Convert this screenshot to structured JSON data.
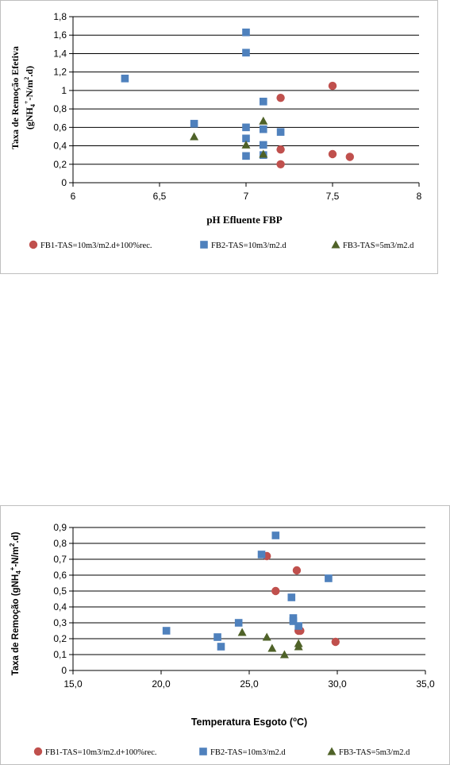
{
  "chart_data": [
    {
      "type": "scatter",
      "title": "",
      "xlabel": "pH Efluente FBP",
      "ylabel": "Taxa de Remoção Efetiva (gNH4+-N/m2.d)",
      "ylabel_line1": "Taxa de Remoção Efetiva",
      "ylabel_line2_pre": "(gNH",
      "ylabel_line2_sub": "4",
      "ylabel_line2_sup": "+",
      "ylabel_line2_mid": "-N/m",
      "ylabel_line2_sup2": "2",
      "ylabel_line2_post": ".d)",
      "xlim": [
        6,
        8
      ],
      "ylim": [
        0,
        1.8
      ],
      "x_ticks": [
        "6",
        "6,5",
        "7",
        "7,5",
        "8"
      ],
      "y_ticks": [
        "0",
        "0,2",
        "0,4",
        "0,6",
        "0,8",
        "1",
        "1,2",
        "1,4",
        "1,6",
        "1,8"
      ],
      "grid": true,
      "legend_position": "bottom",
      "series": [
        {
          "name": "FB1-TAS=10m3/m2.d+100%rec.",
          "marker": "circle",
          "color": "#c0504d",
          "points": [
            [
              7.2,
              0.92
            ],
            [
              7.5,
              1.05
            ],
            [
              7.2,
              0.36
            ],
            [
              7.2,
              0.2
            ],
            [
              7.5,
              0.31
            ],
            [
              7.6,
              0.28
            ]
          ]
        },
        {
          "name": "FB2-TAS=10m3/m2.d",
          "marker": "square",
          "color": "#4f81bd",
          "points": [
            [
              6.3,
              1.13
            ],
            [
              7.0,
              1.63
            ],
            [
              7.0,
              1.41
            ],
            [
              7.1,
              0.88
            ],
            [
              6.7,
              0.64
            ],
            [
              7.0,
              0.6
            ],
            [
              7.1,
              0.58
            ],
            [
              7.2,
              0.55
            ],
            [
              7.0,
              0.48
            ],
            [
              7.1,
              0.41
            ],
            [
              7.0,
              0.29
            ],
            [
              7.1,
              0.3
            ]
          ]
        },
        {
          "name": "FB3-TAS=5m3/m2.d",
          "marker": "triangle",
          "color": "#4f6228",
          "points": [
            [
              6.7,
              0.5
            ],
            [
              7.1,
              0.67
            ],
            [
              7.0,
              0.41
            ],
            [
              7.1,
              0.31
            ]
          ]
        }
      ]
    },
    {
      "type": "scatter",
      "title": "",
      "xlabel": "Temperatura Esgoto (oC)",
      "xlabel_pre": "Temperatura Esgoto (",
      "xlabel_sup": "o",
      "xlabel_post": "C)",
      "ylabel": "Taxa de Remoção (gNH4+-N/m2.d)",
      "ylabel_pre": "Taxa de Remoção (gNH",
      "ylabel_sub": "4",
      "ylabel_sup": "+",
      "ylabel_mid": "-N/m",
      "ylabel_sup2": "2",
      "ylabel_post": ".d)",
      "xlim": [
        15,
        35
      ],
      "ylim": [
        0,
        0.9
      ],
      "x_ticks": [
        "15,0",
        "20,0",
        "25,0",
        "30,0",
        "35,0"
      ],
      "y_ticks": [
        "0",
        "0,1",
        "0,2",
        "0,3",
        "0,4",
        "0,5",
        "0,6",
        "0,7",
        "0,8",
        "0,9"
      ],
      "grid": true,
      "legend_position": "bottom",
      "series": [
        {
          "name": "FB1-TAS=10m3/m2.d+100%rec.",
          "marker": "circle",
          "color": "#c0504d",
          "points": [
            [
              26.0,
              0.72
            ],
            [
              27.7,
              0.63
            ],
            [
              26.5,
              0.5
            ],
            [
              27.9,
              0.25
            ],
            [
              27.8,
              0.25
            ],
            [
              29.9,
              0.18
            ]
          ]
        },
        {
          "name": "FB2-TAS=10m3/m2.d",
          "marker": "square",
          "color": "#4f81bd",
          "points": [
            [
              26.5,
              0.85
            ],
            [
              25.7,
              0.73
            ],
            [
              29.5,
              0.58
            ],
            [
              27.4,
              0.46
            ],
            [
              27.5,
              0.33
            ],
            [
              27.5,
              0.31
            ],
            [
              27.8,
              0.28
            ],
            [
              24.4,
              0.3
            ],
            [
              20.3,
              0.25
            ],
            [
              23.2,
              0.21
            ],
            [
              23.4,
              0.15
            ]
          ]
        },
        {
          "name": "FB3-TAS=5m3/m2.d",
          "marker": "triangle",
          "color": "#4f6228",
          "points": [
            [
              24.6,
              0.24
            ],
            [
              26.0,
              0.21
            ],
            [
              26.3,
              0.14
            ],
            [
              27.8,
              0.17
            ],
            [
              27.8,
              0.15
            ],
            [
              27.0,
              0.1
            ]
          ]
        }
      ]
    }
  ]
}
